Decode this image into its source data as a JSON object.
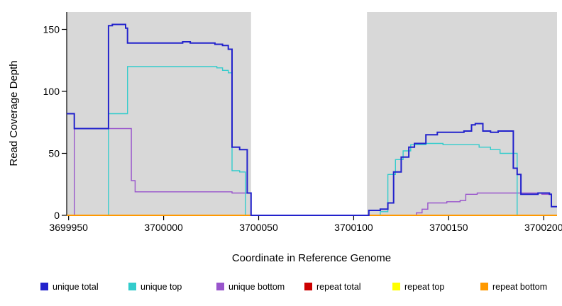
{
  "figure": {
    "background": "#ffffff"
  },
  "chart_data": {
    "type": "line",
    "step": true,
    "title": "",
    "xlabel": "Coordinate in Reference Genome",
    "ylabel": "Read Coverage Depth",
    "xlim": [
      3699949,
      3700207
    ],
    "ylim": [
      0,
      164
    ],
    "xticks": [
      3699950,
      3700000,
      3700050,
      3700100,
      3700150,
      3700200
    ],
    "yticks": [
      0,
      50,
      100,
      150
    ],
    "grid": false,
    "legend_position": "bottom",
    "panel_background": "#d8d8d8",
    "highlight_band": {
      "x0": 3700046,
      "x1": 3700107,
      "color": "#ffffff"
    },
    "series": [
      {
        "name": "unique total",
        "color": "#2222cc",
        "points": [
          [
            3699949,
            82
          ],
          [
            3699953,
            70
          ],
          [
            3699971,
            153
          ],
          [
            3699973,
            154
          ],
          [
            3699980,
            151
          ],
          [
            3699981,
            139
          ],
          [
            3700010,
            140
          ],
          [
            3700014,
            139
          ],
          [
            3700027,
            138
          ],
          [
            3700031,
            137
          ],
          [
            3700034,
            134
          ],
          [
            3700036,
            55
          ],
          [
            3700040,
            53
          ],
          [
            3700044,
            18
          ],
          [
            3700046,
            0
          ],
          [
            3700108,
            4
          ],
          [
            3700114,
            5
          ],
          [
            3700118,
            10
          ],
          [
            3700121,
            35
          ],
          [
            3700125,
            47
          ],
          [
            3700129,
            55
          ],
          [
            3700132,
            58
          ],
          [
            3700138,
            65
          ],
          [
            3700144,
            67
          ],
          [
            3700158,
            68
          ],
          [
            3700162,
            73
          ],
          [
            3700164,
            74
          ],
          [
            3700168,
            68
          ],
          [
            3700172,
            67
          ],
          [
            3700176,
            68
          ],
          [
            3700184,
            38
          ],
          [
            3700186,
            33
          ],
          [
            3700188,
            17
          ],
          [
            3700197,
            18
          ],
          [
            3700203,
            17
          ],
          [
            3700204,
            7
          ]
        ]
      },
      {
        "name": "unique top",
        "color": "#33cccc",
        "points": [
          [
            3699949,
            0
          ],
          [
            3699971,
            82
          ],
          [
            3699981,
            120
          ],
          [
            3700028,
            119
          ],
          [
            3700031,
            117
          ],
          [
            3700034,
            115
          ],
          [
            3700036,
            36
          ],
          [
            3700040,
            35
          ],
          [
            3700043,
            0
          ],
          [
            3700114,
            3
          ],
          [
            3700118,
            33
          ],
          [
            3700122,
            45
          ],
          [
            3700126,
            52
          ],
          [
            3700130,
            57
          ],
          [
            3700138,
            58
          ],
          [
            3700147,
            57
          ],
          [
            3700166,
            55
          ],
          [
            3700172,
            53
          ],
          [
            3700177,
            50
          ],
          [
            3700186,
            0
          ]
        ]
      },
      {
        "name": "unique bottom",
        "color": "#9955cc",
        "points": [
          [
            3699949,
            0
          ],
          [
            3699953,
            70
          ],
          [
            3699983,
            28
          ],
          [
            3699985,
            19
          ],
          [
            3700036,
            18
          ],
          [
            3700046,
            0
          ],
          [
            3700133,
            2
          ],
          [
            3700136,
            5
          ],
          [
            3700139,
            10
          ],
          [
            3700149,
            11
          ],
          [
            3700156,
            12
          ],
          [
            3700159,
            17
          ],
          [
            3700165,
            18
          ],
          [
            3700199,
            17
          ],
          [
            3700204,
            7
          ]
        ]
      },
      {
        "name": "repeat total",
        "color": "#cc0000",
        "points": [
          [
            3699949,
            0
          ]
        ]
      },
      {
        "name": "repeat top",
        "color": "#ffff00",
        "points": [
          [
            3699949,
            0
          ]
        ]
      },
      {
        "name": "repeat bottom",
        "color": "#ff9900",
        "points": [
          [
            3699949,
            0
          ]
        ]
      }
    ]
  }
}
